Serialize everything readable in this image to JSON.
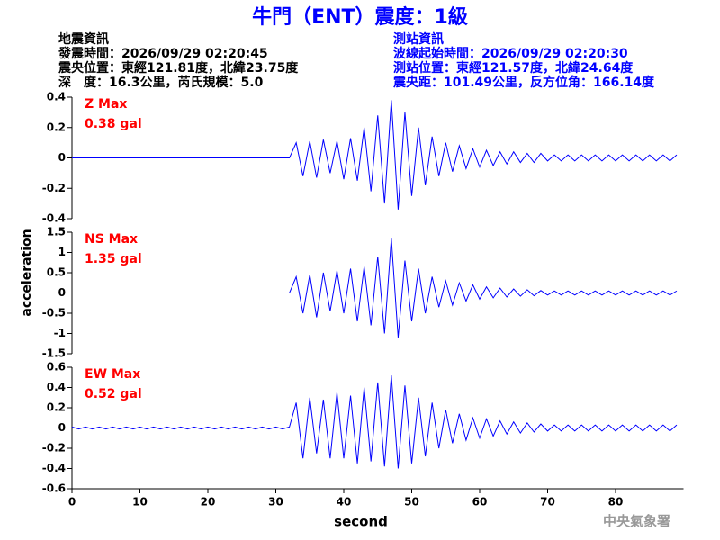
{
  "title": "牛門（ENT）震度：1級",
  "info_left": [
    "地震資訊",
    "發震時間：2026/09/29 02:20:45",
    "震央位置：東經121.81度，北緯23.75度",
    "深　度：16.3公里，芮氏規模：5.0"
  ],
  "info_right": [
    "測站資訊",
    "波線起始時間：2026/09/29 02:20:30",
    "測站位置：東經121.57度，北緯24.64度",
    "震央距：101.49公里，反方位角：166.14度"
  ],
  "ylabel": "acceleration",
  "xlabel": "second",
  "watermark": "中央氣象署",
  "chart_data": [
    {
      "type": "line",
      "annotations": [
        "Z Max",
        "0.38 gal"
      ],
      "annotation_color": "#ff0000",
      "xlim": [
        0,
        90
      ],
      "ylim": [
        -0.4,
        0.4
      ],
      "yticks": [
        -0.4,
        -0.2,
        0,
        0.2,
        0.4
      ],
      "x": [
        0,
        1,
        2,
        3,
        4,
        5,
        6,
        7,
        8,
        9,
        10,
        11,
        12,
        13,
        14,
        15,
        16,
        17,
        18,
        19,
        20,
        21,
        22,
        23,
        24,
        25,
        26,
        27,
        28,
        29,
        30,
        31,
        32,
        33,
        34,
        35,
        36,
        37,
        38,
        39,
        40,
        41,
        42,
        43,
        44,
        45,
        46,
        47,
        48,
        49,
        50,
        51,
        52,
        53,
        54,
        55,
        56,
        57,
        58,
        59,
        60,
        61,
        62,
        63,
        64,
        65,
        66,
        67,
        68,
        69,
        70,
        71,
        72,
        73,
        74,
        75,
        76,
        77,
        78,
        79,
        80,
        81,
        82,
        83,
        84,
        85,
        86,
        87,
        88,
        89
      ],
      "series": [
        {
          "color": "#0000ff",
          "values": [
            0,
            0,
            0,
            0,
            0,
            0,
            0,
            0,
            0,
            0,
            0,
            0,
            0,
            0,
            0,
            0,
            0,
            0,
            0,
            0,
            0,
            0,
            0,
            0,
            0,
            0,
            0,
            0,
            0,
            0,
            0,
            0,
            0,
            0.1,
            -0.12,
            0.11,
            -0.13,
            0.12,
            -0.1,
            0.11,
            -0.14,
            0.13,
            -0.15,
            0.2,
            -0.22,
            0.28,
            -0.3,
            0.38,
            -0.34,
            0.3,
            -0.25,
            0.2,
            -0.18,
            0.14,
            -0.12,
            0.1,
            -0.09,
            0.08,
            -0.07,
            0.06,
            -0.06,
            0.05,
            -0.05,
            0.04,
            -0.04,
            0.04,
            -0.03,
            0.03,
            -0.03,
            0.03,
            -0.02,
            0.02,
            -0.02,
            0.02,
            -0.02,
            0.02,
            -0.02,
            0.02,
            -0.02,
            0.02,
            -0.02,
            0.02,
            -0.02,
            0.02,
            -0.02,
            0.02,
            -0.02,
            0.02,
            -0.02,
            0.02
          ]
        }
      ]
    },
    {
      "type": "line",
      "annotations": [
        "NS Max",
        "1.35 gal"
      ],
      "annotation_color": "#ff0000",
      "xlim": [
        0,
        90
      ],
      "ylim": [
        -1.5,
        1.5
      ],
      "yticks": [
        -1.5,
        -1,
        -0.5,
        0,
        0.5,
        1,
        1.5
      ],
      "x": [
        0,
        1,
        2,
        3,
        4,
        5,
        6,
        7,
        8,
        9,
        10,
        11,
        12,
        13,
        14,
        15,
        16,
        17,
        18,
        19,
        20,
        21,
        22,
        23,
        24,
        25,
        26,
        27,
        28,
        29,
        30,
        31,
        32,
        33,
        34,
        35,
        36,
        37,
        38,
        39,
        40,
        41,
        42,
        43,
        44,
        45,
        46,
        47,
        48,
        49,
        50,
        51,
        52,
        53,
        54,
        55,
        56,
        57,
        58,
        59,
        60,
        61,
        62,
        63,
        64,
        65,
        66,
        67,
        68,
        69,
        70,
        71,
        72,
        73,
        74,
        75,
        76,
        77,
        78,
        79,
        80,
        81,
        82,
        83,
        84,
        85,
        86,
        87,
        88,
        89
      ],
      "series": [
        {
          "color": "#0000ff",
          "values": [
            0,
            0,
            0,
            0,
            0,
            0,
            0,
            0,
            0,
            0,
            0,
            0,
            0,
            0,
            0,
            0,
            0,
            0,
            0,
            0,
            0,
            0,
            0,
            0,
            0,
            0,
            0,
            0,
            0,
            0,
            0,
            0,
            0,
            0.4,
            -0.5,
            0.45,
            -0.6,
            0.5,
            -0.45,
            0.55,
            -0.5,
            0.6,
            -0.7,
            0.65,
            -0.8,
            0.9,
            -1.0,
            1.35,
            -1.1,
            0.8,
            -0.7,
            0.6,
            -0.5,
            0.4,
            -0.35,
            0.3,
            -0.3,
            0.25,
            -0.2,
            0.2,
            -0.15,
            0.15,
            -0.12,
            0.12,
            -0.1,
            0.1,
            -0.08,
            0.08,
            -0.07,
            0.06,
            -0.05,
            0.05,
            -0.05,
            0.05,
            -0.05,
            0.05,
            -0.05,
            0.05,
            -0.05,
            0.05,
            -0.05,
            0.05,
            -0.05,
            0.05,
            -0.05,
            0.05,
            -0.05,
            0.05,
            -0.05,
            0.05
          ]
        }
      ]
    },
    {
      "type": "line",
      "annotations": [
        "EW Max",
        "0.52 gal"
      ],
      "annotation_color": "#ff0000",
      "xlim": [
        0,
        90
      ],
      "ylim": [
        -0.6,
        0.6
      ],
      "yticks": [
        -0.6,
        -0.4,
        -0.2,
        0,
        0.2,
        0.4,
        0.6
      ],
      "xticks": [
        0,
        10,
        20,
        30,
        40,
        50,
        60,
        70,
        80
      ],
      "x": [
        0,
        1,
        2,
        3,
        4,
        5,
        6,
        7,
        8,
        9,
        10,
        11,
        12,
        13,
        14,
        15,
        16,
        17,
        18,
        19,
        20,
        21,
        22,
        23,
        24,
        25,
        26,
        27,
        28,
        29,
        30,
        31,
        32,
        33,
        34,
        35,
        36,
        37,
        38,
        39,
        40,
        41,
        42,
        43,
        44,
        45,
        46,
        47,
        48,
        49,
        50,
        51,
        52,
        53,
        54,
        55,
        56,
        57,
        58,
        59,
        60,
        61,
        62,
        63,
        64,
        65,
        66,
        67,
        68,
        69,
        70,
        71,
        72,
        73,
        74,
        75,
        76,
        77,
        78,
        79,
        80,
        81,
        82,
        83,
        84,
        85,
        86,
        87,
        88,
        89
      ],
      "series": [
        {
          "color": "#0000ff",
          "values": [
            0.01,
            -0.01,
            0.01,
            -0.01,
            0.01,
            -0.01,
            0.01,
            -0.01,
            0.01,
            -0.01,
            0.01,
            -0.01,
            0.01,
            -0.01,
            0.01,
            -0.01,
            0.01,
            -0.01,
            0.01,
            -0.01,
            0.01,
            -0.01,
            0.01,
            -0.01,
            0.01,
            -0.01,
            0.01,
            -0.01,
            0.01,
            -0.01,
            0.01,
            -0.01,
            0.01,
            0.25,
            -0.3,
            0.3,
            -0.25,
            0.28,
            -0.3,
            0.35,
            -0.3,
            0.32,
            -0.35,
            0.4,
            -0.33,
            0.45,
            -0.38,
            0.52,
            -0.4,
            0.42,
            -0.35,
            0.3,
            -0.28,
            0.25,
            -0.2,
            0.18,
            -0.15,
            0.14,
            -0.12,
            0.1,
            -0.1,
            0.09,
            -0.08,
            0.07,
            -0.06,
            0.06,
            -0.05,
            0.05,
            -0.04,
            0.04,
            -0.03,
            0.03,
            -0.03,
            0.03,
            -0.03,
            0.03,
            -0.03,
            0.03,
            -0.03,
            0.03,
            -0.03,
            0.03,
            -0.03,
            0.03,
            -0.03,
            0.03,
            -0.03,
            0.03,
            -0.03,
            0.03
          ]
        }
      ]
    }
  ]
}
